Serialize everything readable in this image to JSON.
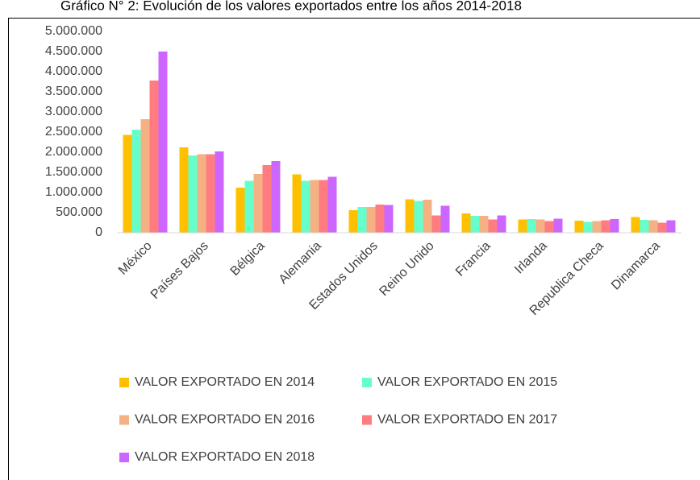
{
  "chart_data": {
    "type": "bar",
    "title": "Gráfico N° 2: Evolución de los valores exportados entre los años 2014-2018",
    "categories": [
      "México",
      "Países Bajos",
      "Bélgica",
      "Alemania",
      "Estados Unidos",
      "Reino Unido",
      "Francia",
      "Irlanda",
      "Republica Checa",
      "Dinamarca"
    ],
    "series": [
      {
        "name": "VALOR EXPORTADO EN 2014",
        "color": "#ffc000",
        "values": [
          2430000,
          2120000,
          1120000,
          1450000,
          560000,
          830000,
          480000,
          330000,
          300000,
          390000
        ]
      },
      {
        "name": "VALOR EXPORTADO EN 2015",
        "color": "#66ffcc",
        "values": [
          2560000,
          1920000,
          1290000,
          1290000,
          640000,
          790000,
          420000,
          340000,
          270000,
          320000
        ]
      },
      {
        "name": "VALOR EXPORTADO EN 2016",
        "color": "#f4b183",
        "values": [
          2820000,
          1950000,
          1460000,
          1310000,
          640000,
          820000,
          420000,
          330000,
          290000,
          310000
        ]
      },
      {
        "name": "VALOR EXPORTADO EN 2017",
        "color": "#ff7c80",
        "values": [
          3780000,
          1950000,
          1680000,
          1310000,
          700000,
          430000,
          330000,
          290000,
          310000,
          250000
        ]
      },
      {
        "name": "VALOR EXPORTADO EN 2018",
        "color": "#cc66ff",
        "values": [
          4500000,
          2020000,
          1780000,
          1390000,
          690000,
          670000,
          430000,
          350000,
          340000,
          310000
        ]
      }
    ],
    "ylim": [
      0,
      5000000
    ],
    "yticks": [
      0,
      {
        "value": 500000,
        "label": "500.000"
      },
      {
        "value": 1000000,
        "label": "1.000.000"
      },
      {
        "value": 1500000,
        "label": "1.500.000"
      },
      {
        "value": 2000000,
        "label": "2.000.000"
      },
      {
        "value": 2500000,
        "label": "2.500.000"
      },
      {
        "value": 3000000,
        "label": "3.000.000"
      },
      {
        "value": 3500000,
        "label": "3.500.000"
      },
      {
        "value": 4000000,
        "label": "4.000.000"
      },
      {
        "value": 4500000,
        "label": "4.500.000"
      },
      {
        "value": 5000000,
        "label": "5.000.000"
      }
    ],
    "grid": false
  }
}
